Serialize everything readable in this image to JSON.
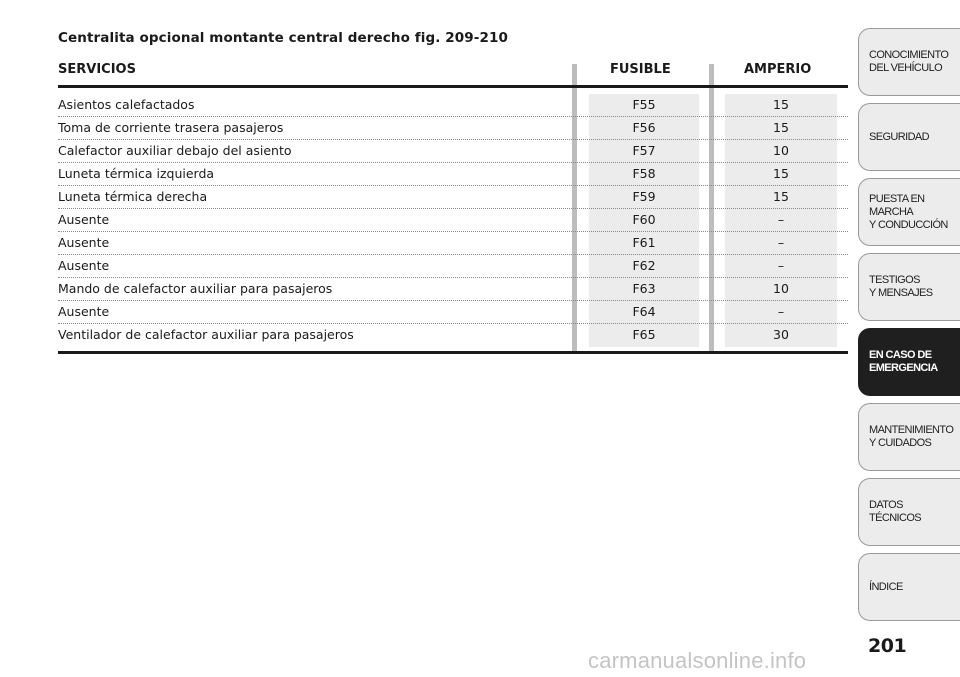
{
  "title": "Centralita opcional montante central derecho fig. 209-210",
  "headers": {
    "servicios": "SERVICIOS",
    "fusible": "FUSIBLE",
    "amperio": "AMPERIO"
  },
  "rows": [
    {
      "servicio": "Asientos calefactados",
      "fusible": "F55",
      "amperio": "15"
    },
    {
      "servicio": "Toma de corriente trasera pasajeros",
      "fusible": "F56",
      "amperio": "15"
    },
    {
      "servicio": "Calefactor auxiliar debajo del asiento",
      "fusible": "F57",
      "amperio": "10"
    },
    {
      "servicio": "Luneta térmica izquierda",
      "fusible": "F58",
      "amperio": "15"
    },
    {
      "servicio": "Luneta térmica derecha",
      "fusible": "F59",
      "amperio": "15"
    },
    {
      "servicio": "Ausente",
      "fusible": "F60",
      "amperio": "–"
    },
    {
      "servicio": "Ausente",
      "fusible": "F61",
      "amperio": "–"
    },
    {
      "servicio": "Ausente",
      "fusible": "F62",
      "amperio": "–"
    },
    {
      "servicio": "Mando de calefactor auxiliar para pasajeros",
      "fusible": "F63",
      "amperio": "10"
    },
    {
      "servicio": "Ausente",
      "fusible": "F64",
      "amperio": "–"
    },
    {
      "servicio": "Ventilador de calefactor auxiliar para pasajeros",
      "fusible": "F65",
      "amperio": "30"
    }
  ],
  "tabs": [
    {
      "lines": [
        "CONOCIMIENTO",
        "DEL VEHÍCULO"
      ],
      "active": false
    },
    {
      "lines": [
        "SEGURIDAD"
      ],
      "active": false
    },
    {
      "lines": [
        "PUESTA EN",
        "MARCHA",
        "Y CONDUCCIÓN"
      ],
      "active": false
    },
    {
      "lines": [
        "TESTIGOS",
        "Y MENSAJES"
      ],
      "active": false
    },
    {
      "lines": [
        "EN CASO DE",
        "EMERGENCIA"
      ],
      "active": true
    },
    {
      "lines": [
        "MANTENIMIENTO",
        "Y CUIDADOS"
      ],
      "active": false
    },
    {
      "lines": [
        "DATOS",
        "TÉCNICOS"
      ],
      "active": false
    },
    {
      "lines": [
        "ÍNDICE"
      ],
      "active": false
    }
  ],
  "page_number": "201",
  "watermark": "carmanualsonline.info"
}
